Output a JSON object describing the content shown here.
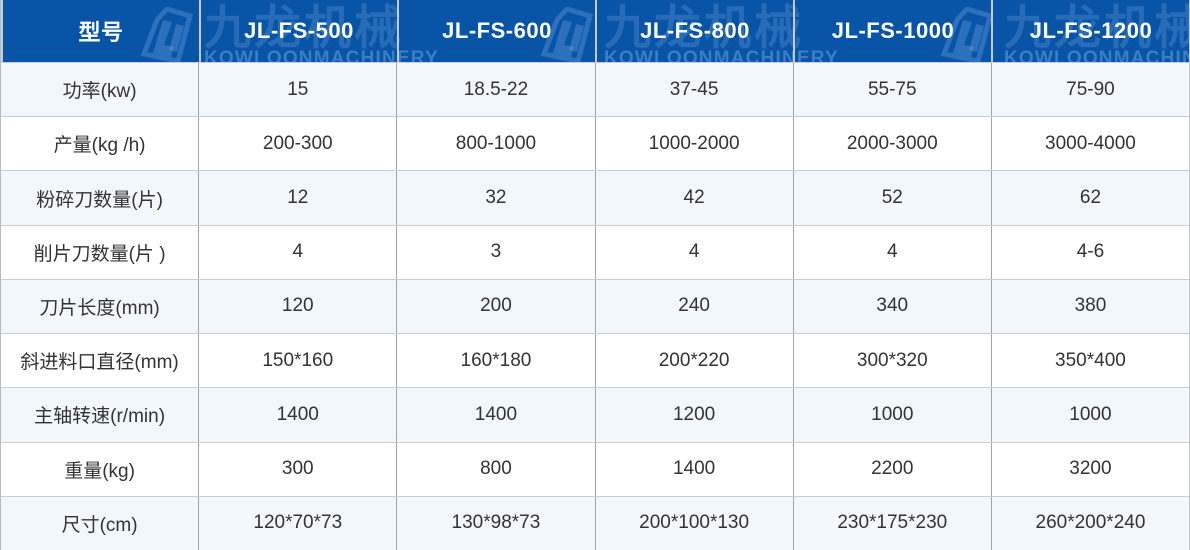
{
  "watermark": {
    "brand_cn": "九龙机械",
    "brand_en": "KOWLOONMACHINERY",
    "logo_icon": "jl-monogram"
  },
  "colors": {
    "header_bg": "#0854a6",
    "header_text": "#ffffff",
    "row_alt_bg": "#f2f7fc",
    "row_bg": "#ffffff",
    "body_text": "#333333",
    "grid_line": "#9ea4a8"
  },
  "table": {
    "header": {
      "label": "型号",
      "models": [
        "JL-FS-500",
        "JL-FS-600",
        "JL-FS-800",
        "JL-FS-1000",
        "JL-FS-1200"
      ]
    },
    "rows": [
      {
        "label": "功率(kw)",
        "values": [
          "15",
          "18.5-22",
          "37-45",
          "55-75",
          "75-90"
        ]
      },
      {
        "label": "产量(kg /h)",
        "values": [
          "200-300",
          "800-1000",
          "1000-2000",
          "2000-3000",
          "3000-4000"
        ]
      },
      {
        "label": "粉碎刀数量(片)",
        "values": [
          "12",
          "32",
          "42",
          "52",
          "62"
        ]
      },
      {
        "label": "削片刀数量(片 )",
        "values": [
          "4",
          "3",
          "4",
          "4",
          "4-6"
        ]
      },
      {
        "label": "刀片长度(mm)",
        "values": [
          "120",
          "200",
          "240",
          "340",
          "380"
        ]
      },
      {
        "label": "斜进料口直径(mm)",
        "values": [
          "150*160",
          "160*180",
          "200*220",
          "300*320",
          "350*400"
        ]
      },
      {
        "label": "主轴转速(r/min)",
        "values": [
          "1400",
          "1400",
          "1200",
          "1000",
          "1000"
        ]
      },
      {
        "label": "重量(kg)",
        "values": [
          "300",
          "800",
          "1400",
          "2200",
          "3200"
        ]
      },
      {
        "label": "尺寸(cm)",
        "values": [
          "120*70*73",
          "130*98*73",
          "200*100*130",
          "230*175*230",
          "260*200*240"
        ]
      }
    ]
  }
}
